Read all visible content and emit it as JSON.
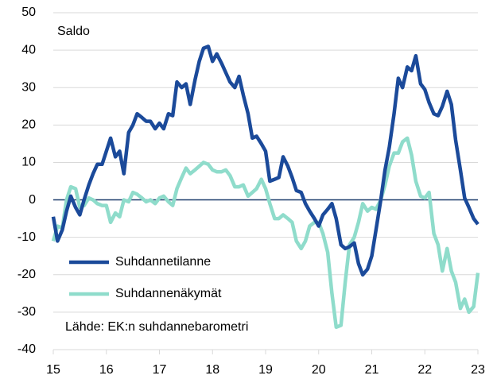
{
  "chart_data": {
    "type": "line",
    "y_label": "Saldo",
    "annotation": "Lähde: EK:n suhdannebarometri",
    "x": [
      15,
      15.08,
      15.17,
      15.25,
      15.33,
      15.42,
      15.5,
      15.58,
      15.67,
      15.75,
      15.83,
      15.92,
      16,
      16.08,
      16.17,
      16.25,
      16.33,
      16.42,
      16.5,
      16.58,
      16.67,
      16.75,
      16.83,
      16.92,
      17,
      17.08,
      17.17,
      17.25,
      17.33,
      17.42,
      17.5,
      17.58,
      17.67,
      17.75,
      17.83,
      17.92,
      18,
      18.08,
      18.17,
      18.25,
      18.33,
      18.42,
      18.5,
      18.58,
      18.67,
      18.75,
      18.83,
      18.92,
      19,
      19.08,
      19.17,
      19.25,
      19.33,
      19.42,
      19.5,
      19.58,
      19.67,
      19.75,
      19.83,
      19.92,
      20,
      20.08,
      20.17,
      20.25,
      20.33,
      20.42,
      20.5,
      20.58,
      20.67,
      20.75,
      20.83,
      20.92,
      21,
      21.08,
      21.17,
      21.25,
      21.33,
      21.42,
      21.5,
      21.58,
      21.67,
      21.75,
      21.83,
      21.92,
      22,
      22.08,
      22.17,
      22.25,
      22.33,
      22.42,
      22.5,
      22.58,
      22.67,
      22.75,
      22.83,
      22.92,
      23
    ],
    "series": [
      {
        "name": "Suhdannetilanne",
        "color": "#1b4a9a",
        "values": [
          -4.5,
          -11,
          -8,
          -3,
          1,
          -2,
          -4,
          0,
          4,
          7,
          9.5,
          9.5,
          13,
          16.5,
          11.5,
          13,
          7,
          18,
          20,
          23,
          22,
          21,
          21,
          19,
          20.5,
          19,
          23,
          22.5,
          31.5,
          30,
          31,
          25.5,
          32,
          37,
          40.5,
          41,
          37,
          39,
          36.5,
          34,
          31.5,
          30,
          33,
          28,
          23,
          16.5,
          17,
          15,
          13,
          5,
          5.5,
          6,
          11.5,
          9,
          6,
          2.5,
          2,
          -1,
          -3,
          -5,
          -7,
          -4,
          -2.5,
          -1,
          -5,
          -12,
          -13,
          -12.5,
          -11.5,
          -17,
          -20,
          -18.5,
          -15,
          -8,
          0,
          8,
          14,
          23,
          32.5,
          30,
          35.5,
          34.5,
          38.5,
          31,
          29.5,
          26,
          23,
          22.5,
          25,
          29,
          25.5,
          16,
          8,
          0.5,
          -2,
          -5,
          -6.5
        ]
      },
      {
        "name": "Suhdannenäkymät",
        "color": "#8fdccb",
        "values": [
          -11,
          -7,
          -7.5,
          0,
          3.5,
          3,
          -2,
          -1.5,
          0.5,
          0,
          -1,
          -1.5,
          -1.5,
          -6,
          -3.5,
          -4.5,
          0,
          -0.5,
          2,
          1.5,
          0.5,
          -0.5,
          0,
          -1,
          0.5,
          1,
          -0.5,
          -1.5,
          3,
          6,
          8.5,
          7,
          8,
          9,
          10,
          9.5,
          8,
          7.5,
          7.5,
          8,
          6.5,
          3.5,
          3.5,
          4,
          1,
          2,
          3,
          5.5,
          3,
          -1,
          -5,
          -5,
          -4,
          -5,
          -6,
          -11,
          -13,
          -11,
          -7,
          -6,
          -6,
          -9,
          -14,
          -25,
          -34,
          -33.5,
          -22,
          -12,
          -10,
          -6,
          -1,
          -3,
          -2,
          -2.5,
          0,
          4,
          9,
          12.5,
          12.5,
          15.5,
          16.5,
          12,
          5,
          1,
          0.5,
          2,
          -9,
          -12,
          -19,
          -13,
          -19,
          -22,
          -29,
          -26.5,
          -30,
          -28.5,
          -19.5
        ]
      }
    ],
    "xlim": [
      15,
      23
    ],
    "xticks": [
      15,
      16,
      17,
      18,
      19,
      20,
      21,
      22,
      23
    ],
    "ylim": [
      -40,
      50
    ],
    "yticks": [
      -40,
      -30,
      -20,
      -10,
      0,
      10,
      20,
      30,
      40,
      50
    ],
    "grid": true
  }
}
